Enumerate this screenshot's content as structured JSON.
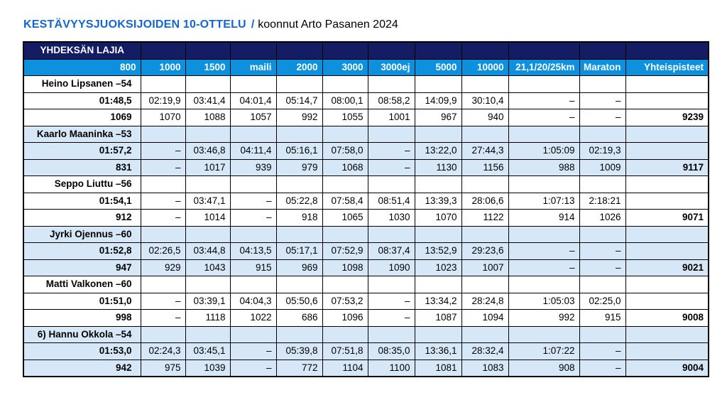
{
  "title": {
    "main": "KESTÄVYYSJUOKSIJOIDEN 10-OTTELU",
    "separator": "/",
    "subtitle": "koonnut Arto Pasanen 2024"
  },
  "table": {
    "group_header": "YHDEKSÄN LAJIA",
    "columns": [
      "800",
      "1000",
      "1500",
      "maili",
      "2000",
      "3000",
      "3000ej",
      "5000",
      "10000",
      "21,1/20/25km",
      "Maraton",
      "Yhteispisteet"
    ],
    "runners": [
      {
        "name": "Heino Lipsanen –54",
        "shaded": false,
        "times": [
          "01:48,5",
          "02:19,9",
          "03:41,4",
          "04:01,4",
          "05:14,7",
          "08:00,1",
          "08:58,2",
          "14:09,9",
          "30:10,4",
          "–",
          "–"
        ],
        "points": [
          "1069",
          "1070",
          "1088",
          "1057",
          "992",
          "1055",
          "1001",
          "967",
          "940",
          "–",
          "–"
        ],
        "total": "9239"
      },
      {
        "name": "Kaarlo Maaninka –53",
        "shaded": true,
        "times": [
          "01:57,2",
          "–",
          "03:46,8",
          "04:11,4",
          "05:16,1",
          "07:58,0",
          "–",
          "13:22,0",
          "27:44,3",
          "1:05:09",
          "02:19,3"
        ],
        "points": [
          "831",
          "–",
          "1017",
          "939",
          "979",
          "1068",
          "–",
          "1130",
          "1156",
          "988",
          "1009"
        ],
        "total": "9117"
      },
      {
        "name": "Seppo Liuttu –56",
        "shaded": false,
        "times": [
          "01:54,1",
          "–",
          "03:47,1",
          "–",
          "05:22,8",
          "07:58,4",
          "08:51,4",
          "13:39,3",
          "28:06,6",
          "1:07:13",
          "2:18:21"
        ],
        "points": [
          "912",
          "–",
          "1014",
          "–",
          "918",
          "1065",
          "1030",
          "1070",
          "1122",
          "914",
          "1026"
        ],
        "total": "9071"
      },
      {
        "name": "Jyrki Ojennus –60",
        "shaded": true,
        "times": [
          "01:52,8",
          "02:26,5",
          "03:44,8",
          "04:13,5",
          "05:17,1",
          "07:52,9",
          "08:37,4",
          "13:52,9",
          "29:23,6",
          "–",
          "–"
        ],
        "points": [
          "947",
          "929",
          "1043",
          "915",
          "969",
          "1098",
          "1090",
          "1023",
          "1007",
          "–",
          "–"
        ],
        "total": "9021"
      },
      {
        "name": "Matti Valkonen –60",
        "shaded": false,
        "times": [
          "01:51,0",
          "–",
          "03:39,1",
          "04:04,3",
          "05:50,6",
          "07:53,2",
          "–",
          "13:34,2",
          "28:24,8",
          "1:05:03",
          "02:25,0"
        ],
        "points": [
          "998",
          "–",
          "1118",
          "1022",
          "686",
          "1096",
          "–",
          "1087",
          "1094",
          "992",
          "915"
        ],
        "total": "9008"
      },
      {
        "name": "6) Hannu Okkola –54",
        "shaded": true,
        "times": [
          "01:53,0",
          "02:24,3",
          "03:45,1",
          "–",
          "05:39,8",
          "07:51,8",
          "08:35,0",
          "13:36,1",
          "28:32,4",
          "1:07:22",
          "–"
        ],
        "points": [
          "942",
          "975",
          "1039",
          "–",
          "772",
          "1104",
          "1100",
          "1081",
          "1083",
          "908",
          "–"
        ],
        "total": "9004"
      }
    ]
  },
  "colors": {
    "navy": "#141c63",
    "azure": "#0d90dd",
    "pale": "#d6e7f7",
    "titleblue": "#1566cf"
  }
}
